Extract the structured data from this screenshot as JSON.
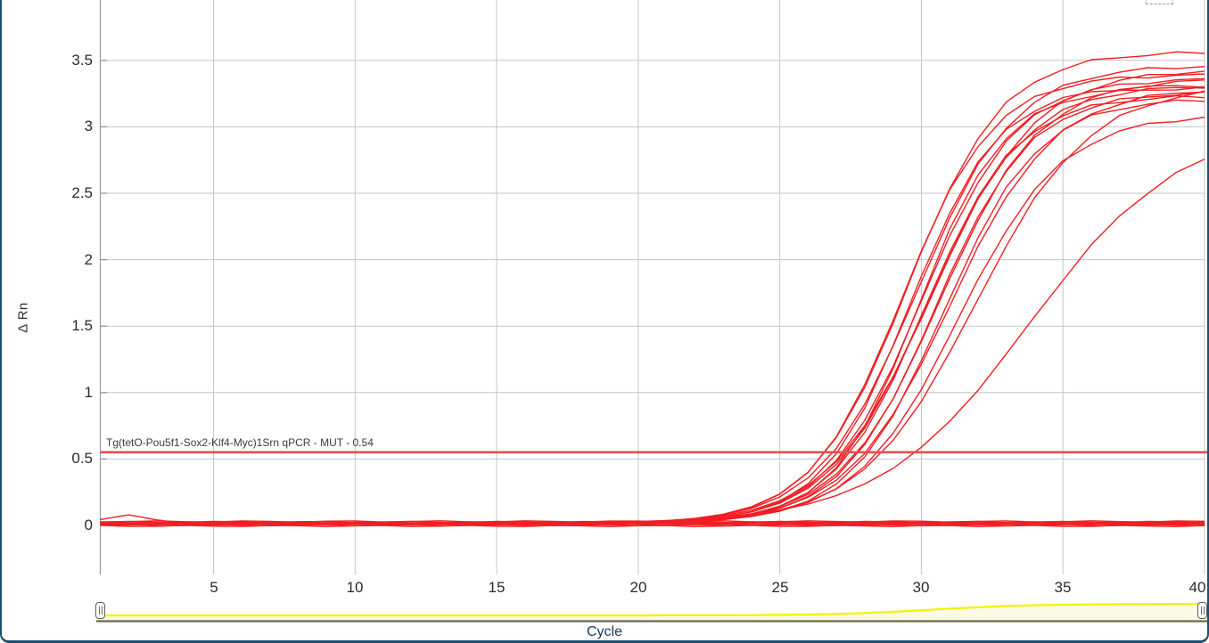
{
  "panel": {
    "border_color": "#1d4f70",
    "background": "#ffffff"
  },
  "chart_data": {
    "type": "line",
    "title": "",
    "xlabel": "Cycle",
    "ylabel": "Δ Rn",
    "x_ticks": [
      5,
      10,
      15,
      20,
      25,
      30,
      35,
      40
    ],
    "y_ticks": [
      0,
      0.5,
      1,
      1.5,
      2,
      2.5,
      3,
      3.5
    ],
    "xlim": [
      1,
      40
    ],
    "ylim": [
      -0.33,
      3.95
    ],
    "grid": true,
    "grid_color": "#c6c6c6",
    "axis_color": "#9a9a9a",
    "curve_color": "#f01e23",
    "threshold": {
      "value": 0.54,
      "label": "Tg(tetO-Pou5f1-Sox2-Klf4-Myc)1Srn qPCR - MUT - 0.54",
      "color": "#e25050"
    },
    "series": [
      {
        "kind": "amplified",
        "mid": 29.3,
        "k": 0.62,
        "plateau": 3.38,
        "ct": 26.6
      },
      {
        "kind": "amplified",
        "mid": 29.5,
        "k": 0.6,
        "plateau": 3.55,
        "ct": 26.6
      },
      {
        "kind": "amplified",
        "mid": 29.6,
        "k": 0.64,
        "plateau": 3.3,
        "ct": 27.0
      },
      {
        "kind": "amplified",
        "mid": 29.8,
        "k": 0.58,
        "plateau": 3.45,
        "ct": 26.9
      },
      {
        "kind": "amplified",
        "mid": 29.9,
        "k": 0.66,
        "plateau": 3.28,
        "ct": 27.4
      },
      {
        "kind": "amplified",
        "mid": 30.0,
        "k": 0.6,
        "plateau": 3.35,
        "ct": 27.2
      },
      {
        "kind": "amplified",
        "mid": 30.1,
        "k": 0.62,
        "plateau": 3.22,
        "ct": 27.5
      },
      {
        "kind": "amplified",
        "mid": 30.2,
        "k": 0.58,
        "plateau": 3.3,
        "ct": 27.3
      },
      {
        "kind": "amplified",
        "mid": 30.35,
        "k": 0.55,
        "plateau": 3.42,
        "ct": 27.3
      },
      {
        "kind": "amplified",
        "mid": 30.5,
        "k": 0.6,
        "plateau": 3.25,
        "ct": 27.8
      },
      {
        "kind": "amplified",
        "mid": 30.65,
        "k": 0.57,
        "plateau": 3.35,
        "ct": 27.7
      },
      {
        "kind": "amplified",
        "mid": 30.8,
        "k": 0.6,
        "plateau": 3.2,
        "ct": 28.1
      },
      {
        "kind": "amplified",
        "mid": 31.0,
        "k": 0.55,
        "plateau": 3.28,
        "ct": 28.0
      },
      {
        "kind": "amplified",
        "mid": 31.3,
        "k": 0.55,
        "plateau": 3.08,
        "ct": 28.4
      },
      {
        "kind": "amplified",
        "mid": 31.9,
        "k": 0.5,
        "plateau": 3.3,
        "ct": 28.6
      },
      {
        "kind": "amplified",
        "mid": 33.8,
        "k": 0.38,
        "plateau": 3.0,
        "ct": 29.8
      },
      {
        "kind": "flat",
        "level": 0.03
      },
      {
        "kind": "flat",
        "level": 0.026
      },
      {
        "kind": "flat",
        "level": 0.022
      },
      {
        "kind": "flat",
        "level": 0.018
      },
      {
        "kind": "flat",
        "level": 0.015,
        "bump": 0.06
      },
      {
        "kind": "flat",
        "level": 0.011
      },
      {
        "kind": "flat",
        "level": 0.007
      },
      {
        "kind": "flat",
        "level": 0.003
      },
      {
        "kind": "flat",
        "level": -0.004
      }
    ]
  },
  "overview": {
    "fill_color": "#fcf9e4",
    "line_color": "#f3f300",
    "track_color": "#6b6b4c",
    "range_start_cycle": 1,
    "range_end_cycle": 40
  }
}
